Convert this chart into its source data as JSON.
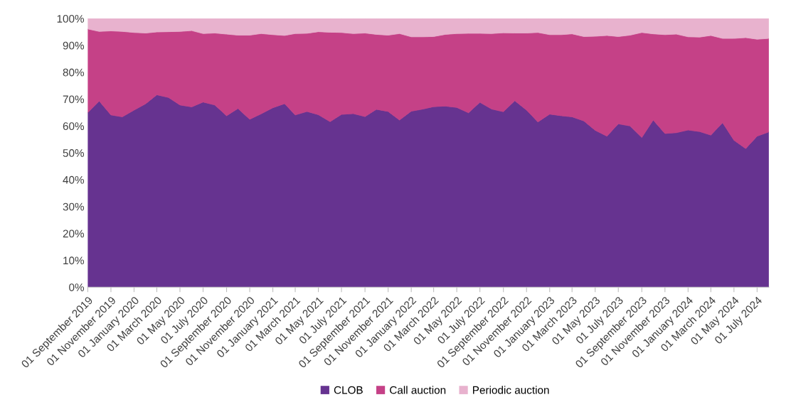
{
  "chart_data": {
    "type": "area",
    "stacked": true,
    "x": [
      "2019-09",
      "2019-10",
      "2019-11",
      "2019-12",
      "2020-01",
      "2020-02",
      "2020-03",
      "2020-04",
      "2020-05",
      "2020-06",
      "2020-07",
      "2020-08",
      "2020-09",
      "2020-10",
      "2020-11",
      "2020-12",
      "2021-01",
      "2021-02",
      "2021-03",
      "2021-04",
      "2021-05",
      "2021-06",
      "2021-07",
      "2021-08",
      "2021-09",
      "2021-10",
      "2021-11",
      "2021-12",
      "2022-01",
      "2022-02",
      "2022-03",
      "2022-04",
      "2022-05",
      "2022-06",
      "2022-07",
      "2022-08",
      "2022-09",
      "2022-10",
      "2022-11",
      "2022-12",
      "2023-01",
      "2023-02",
      "2023-03",
      "2023-04",
      "2023-05",
      "2023-06",
      "2023-07",
      "2023-08",
      "2023-09",
      "2023-10",
      "2023-11",
      "2023-12",
      "2024-01",
      "2024-02",
      "2024-03",
      "2024-04",
      "2024-05",
      "2024-06",
      "2024-07",
      "2024-08"
    ],
    "series": [
      {
        "name": "CLOB",
        "color": "#663390",
        "values": [
          65.0,
          69.3,
          64.1,
          63.4,
          65.9,
          68.3,
          71.6,
          70.6,
          67.8,
          67.1,
          68.9,
          67.8,
          63.8,
          66.5,
          62.5,
          64.5,
          66.8,
          68.3,
          64.1,
          65.4,
          64.2,
          61.6,
          64.3,
          64.6,
          63.5,
          66.2,
          65.4,
          62.2,
          65.5,
          66.3,
          67.2,
          67.4,
          66.9,
          64.9,
          68.8,
          66.3,
          65.3,
          69.4,
          65.9,
          61.5,
          64.4,
          63.8,
          63.4,
          61.9,
          58.4,
          56.2,
          60.8,
          60.0,
          55.7,
          62.2,
          57.2,
          57.5,
          58.5,
          57.9,
          56.6,
          61.2,
          54.7,
          51.6,
          56.2,
          57.8
        ]
      },
      {
        "name": "Call auction",
        "color": "#c54187",
        "values": [
          31.1,
          25.9,
          31.3,
          31.8,
          28.9,
          26.3,
          23.4,
          24.5,
          27.4,
          28.4,
          25.5,
          26.8,
          30.4,
          27.3,
          31.3,
          29.9,
          27.2,
          25.4,
          30.3,
          29.1,
          30.9,
          33.3,
          30.5,
          29.8,
          31.1,
          27.9,
          28.4,
          32.2,
          27.7,
          26.9,
          26.1,
          26.7,
          27.5,
          29.6,
          25.7,
          28.1,
          29.4,
          25.2,
          28.7,
          33.3,
          29.6,
          30.2,
          30.9,
          31.4,
          35.0,
          37.5,
          32.5,
          33.8,
          39.1,
          32.1,
          36.8,
          36.7,
          34.7,
          35.2,
          37.1,
          31.4,
          37.9,
          41.3,
          36.1,
          34.8
        ]
      },
      {
        "name": "Periodic auction",
        "color": "#e8b2ce",
        "values": [
          3.9,
          4.8,
          4.6,
          4.8,
          5.2,
          5.4,
          5.0,
          4.9,
          4.8,
          4.5,
          5.6,
          5.4,
          5.8,
          6.2,
          6.2,
          5.6,
          6.0,
          6.3,
          5.6,
          5.5,
          4.9,
          5.1,
          5.2,
          5.6,
          5.4,
          5.9,
          6.2,
          5.6,
          6.8,
          6.8,
          6.7,
          5.9,
          5.6,
          5.5,
          5.5,
          5.6,
          5.3,
          5.4,
          5.4,
          5.2,
          6.0,
          6.0,
          5.7,
          6.7,
          6.6,
          6.3,
          6.7,
          6.2,
          5.2,
          5.7,
          6.0,
          5.8,
          6.8,
          6.9,
          6.3,
          7.4,
          7.4,
          7.1,
          7.7,
          7.4
        ]
      }
    ],
    "xlim": [
      "2019-09",
      "2024-08"
    ],
    "xticks": [
      {
        "value": "2019-09",
        "label": "01 September 2019"
      },
      {
        "value": "2019-11",
        "label": "01 November 2019"
      },
      {
        "value": "2020-01",
        "label": "01 January 2020"
      },
      {
        "value": "2020-03",
        "label": "01 March 2020"
      },
      {
        "value": "2020-05",
        "label": "01 May 2020"
      },
      {
        "value": "2020-07",
        "label": "01 July 2020"
      },
      {
        "value": "2020-09",
        "label": "01 September 2020"
      },
      {
        "value": "2020-11",
        "label": "01 November 2020"
      },
      {
        "value": "2021-01",
        "label": "01 January 2021"
      },
      {
        "value": "2021-03",
        "label": "01 March 2021"
      },
      {
        "value": "2021-05",
        "label": "01 May 2021"
      },
      {
        "value": "2021-07",
        "label": "01 July 2021"
      },
      {
        "value": "2021-09",
        "label": "01 September 2021"
      },
      {
        "value": "2021-11",
        "label": "01 November 2021"
      },
      {
        "value": "2022-01",
        "label": "01 January 2022"
      },
      {
        "value": "2022-03",
        "label": "01 March 2022"
      },
      {
        "value": "2022-05",
        "label": "01 May 2022"
      },
      {
        "value": "2022-07",
        "label": "01 July 2022"
      },
      {
        "value": "2022-09",
        "label": "01 September 2022"
      },
      {
        "value": "2022-11",
        "label": "01 November 2022"
      },
      {
        "value": "2023-01",
        "label": "01 January 2023"
      },
      {
        "value": "2023-03",
        "label": "01 March 2023"
      },
      {
        "value": "2023-05",
        "label": "01 May 2023"
      },
      {
        "value": "2023-07",
        "label": "01 July 2023"
      },
      {
        "value": "2023-09",
        "label": "01 September 2023"
      },
      {
        "value": "2023-11",
        "label": "01 November 2023"
      },
      {
        "value": "2024-01",
        "label": "01 January 2024"
      },
      {
        "value": "2024-03",
        "label": "01 March 2024"
      },
      {
        "value": "2024-05",
        "label": "01 May 2024"
      },
      {
        "value": "2024-07",
        "label": "01 July 2024"
      }
    ],
    "ylim": [
      0,
      100
    ],
    "yticks": [
      {
        "value": 0,
        "label": "0%"
      },
      {
        "value": 10,
        "label": "10%"
      },
      {
        "value": 20,
        "label": "20%"
      },
      {
        "value": 30,
        "label": "30%"
      },
      {
        "value": 40,
        "label": "40%"
      },
      {
        "value": 50,
        "label": "50%"
      },
      {
        "value": 60,
        "label": "60%"
      },
      {
        "value": 70,
        "label": "70%"
      },
      {
        "value": 80,
        "label": "80%"
      },
      {
        "value": 90,
        "label": "90%"
      },
      {
        "value": 100,
        "label": "100%"
      }
    ],
    "grid": false,
    "legend": "bottom"
  }
}
